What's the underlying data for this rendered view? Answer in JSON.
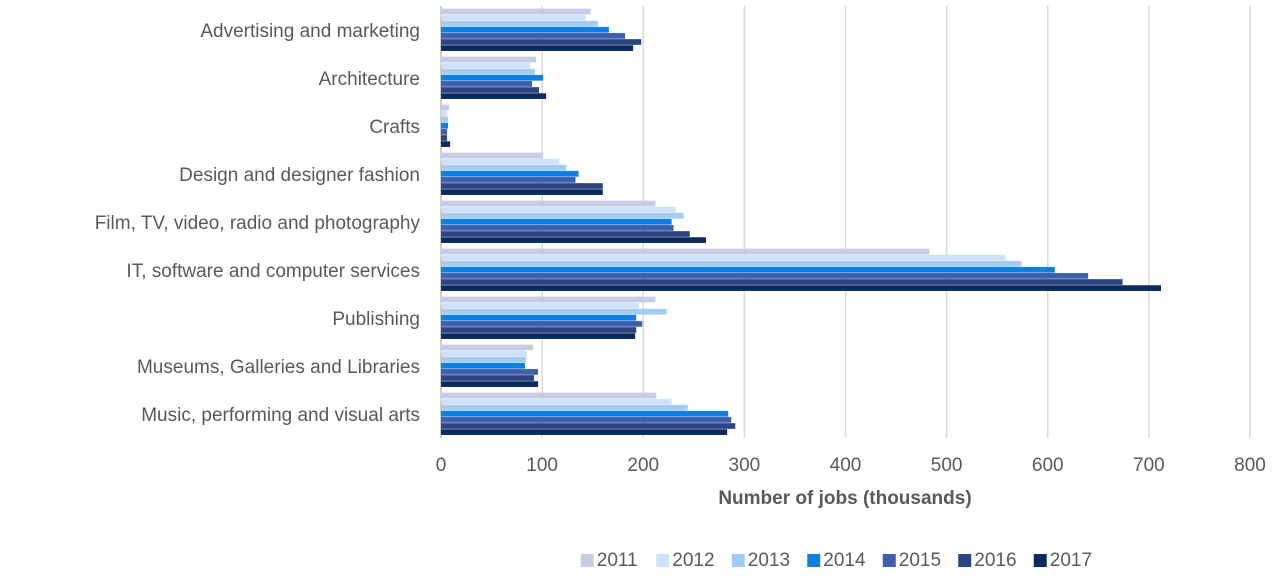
{
  "chart_data": {
    "type": "bar",
    "orientation": "horizontal",
    "categories": [
      "Advertising and marketing",
      "Architecture",
      "Crafts",
      "Design and designer fashion",
      "Film, TV, video, radio and photography",
      "IT, software and computer services",
      "Publishing",
      "Museums, Galleries and Libraries",
      "Music, performing and visual arts"
    ],
    "series": [
      {
        "name": "2011",
        "color": "#c9cde3",
        "values": [
          148,
          94,
          8,
          101,
          212,
          483,
          212,
          91,
          213
        ]
      },
      {
        "name": "2012",
        "color": "#cfe1f7",
        "values": [
          143,
          88,
          6,
          117,
          232,
          558,
          196,
          85,
          228
        ]
      },
      {
        "name": "2013",
        "color": "#9fcbf5",
        "values": [
          155,
          93,
          7,
          124,
          240,
          574,
          223,
          84,
          244
        ]
      },
      {
        "name": "2014",
        "color": "#0e7fe0",
        "values": [
          166,
          101,
          7,
          136,
          228,
          607,
          193,
          83,
          284
        ]
      },
      {
        "name": "2015",
        "color": "#3f5fae",
        "values": [
          182,
          90,
          6,
          133,
          230,
          640,
          199,
          96,
          287
        ]
      },
      {
        "name": "2016",
        "color": "#2c4580",
        "values": [
          198,
          97,
          6,
          160,
          246,
          674,
          193,
          92,
          291
        ]
      },
      {
        "name": "2017",
        "color": "#0d2a5c",
        "values": [
          190,
          104,
          9,
          160,
          262,
          712,
          192,
          96,
          283
        ]
      }
    ],
    "xlabel": "Number of jobs (thousands)",
    "xlim": [
      0,
      800
    ],
    "xticks": [
      "0",
      "100",
      "200",
      "300",
      "400",
      "500",
      "600",
      "700",
      "800"
    ],
    "grid": "vertical",
    "legend": "bottom"
  }
}
